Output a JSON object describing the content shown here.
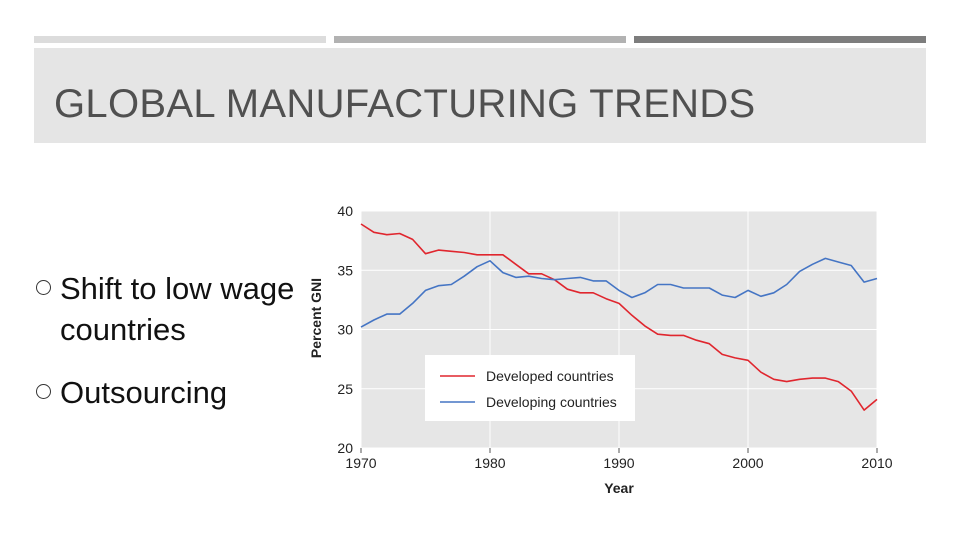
{
  "slide": {
    "title": "GLOBAL MANUFACTURING TRENDS",
    "bullets": [
      "Shift to low wage countries",
      "Outsourcing"
    ]
  },
  "chart_data": {
    "type": "line",
    "xlabel": "Year",
    "ylabel": "Percent GNI",
    "xlim": [
      1970,
      2010
    ],
    "ylim": [
      20,
      40
    ],
    "xticks": [
      1970,
      1980,
      1990,
      2000,
      2010
    ],
    "yticks": [
      20,
      25,
      30,
      35,
      40
    ],
    "grid": true,
    "legend_position": "lower-center",
    "x": [
      1970,
      1971,
      1972,
      1973,
      1974,
      1975,
      1976,
      1977,
      1978,
      1979,
      1980,
      1981,
      1982,
      1983,
      1984,
      1985,
      1986,
      1987,
      1988,
      1989,
      1990,
      1991,
      1992,
      1993,
      1994,
      1995,
      1996,
      1997,
      1998,
      1999,
      2000,
      2001,
      2002,
      2003,
      2004,
      2005,
      2006,
      2007,
      2008,
      2009,
      2010
    ],
    "series": [
      {
        "name": "Developed countries",
        "color": "#e0262e",
        "values": [
          38.9,
          38.2,
          38.0,
          38.1,
          37.6,
          36.4,
          36.7,
          36.6,
          36.5,
          36.3,
          36.3,
          36.3,
          35.5,
          34.7,
          34.7,
          34.2,
          33.4,
          33.1,
          33.1,
          32.6,
          32.2,
          31.2,
          30.3,
          29.6,
          29.5,
          29.5,
          29.1,
          28.8,
          27.9,
          27.6,
          27.4,
          26.4,
          25.8,
          25.6,
          25.8,
          25.9,
          25.9,
          25.6,
          24.8,
          23.2,
          24.1
        ]
      },
      {
        "name": "Developing countries",
        "color": "#4575c4",
        "values": [
          30.2,
          30.8,
          31.3,
          31.3,
          32.2,
          33.3,
          33.7,
          33.8,
          34.5,
          35.3,
          35.8,
          34.8,
          34.4,
          34.5,
          34.3,
          34.2,
          34.3,
          34.4,
          34.1,
          34.1,
          33.3,
          32.7,
          33.1,
          33.8,
          33.8,
          33.5,
          33.5,
          33.5,
          32.9,
          32.7,
          33.3,
          32.8,
          33.1,
          33.8,
          34.9,
          35.5,
          36.0,
          35.7,
          35.4,
          34.0,
          34.3
        ]
      }
    ]
  }
}
